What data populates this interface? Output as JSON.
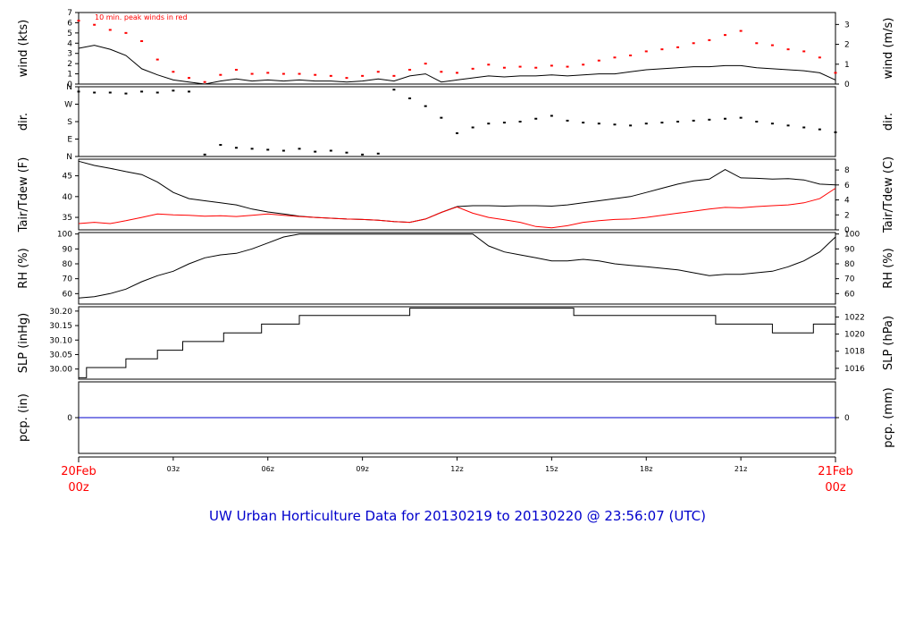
{
  "colors": {
    "main_series": "#000000",
    "peak_wind": "#ff0000",
    "dewpoint": "#ff0000",
    "precip": "#0000cc",
    "title": "#0000cc",
    "x_end_labels": "#ff0000"
  },
  "chart_data": {
    "title": "UW Urban Horticulture Data for 20130219  to  20130220 @ 23:56:07  (UTC)",
    "x_unit": "hours UTC",
    "x_range": [
      0,
      24
    ],
    "x_ticks": [
      {
        "x": 3,
        "label": "03z"
      },
      {
        "x": 6,
        "label": "06z"
      },
      {
        "x": 9,
        "label": "09z"
      },
      {
        "x": 12,
        "label": "12z"
      },
      {
        "x": 15,
        "label": "15z"
      },
      {
        "x": 18,
        "label": "18z"
      },
      {
        "x": 21,
        "label": "21z"
      }
    ],
    "x_start_label": [
      "20Feb",
      "00z"
    ],
    "x_end_label": [
      "21Feb",
      "00z"
    ],
    "panels": [
      {
        "id": "wind",
        "type": "line",
        "ylabel": "wind (kts)",
        "ylabel_right": "wind (m/s)",
        "ylim": [
          0,
          7
        ],
        "yticks_left": [
          0,
          1,
          2,
          3,
          4,
          5,
          6,
          7
        ],
        "right_scale": 0.514444,
        "yticks_right": [
          0,
          1,
          2,
          3
        ],
        "annotation": "10 min. peak winds in red",
        "series": [
          {
            "role": "main",
            "x": [
              0,
              0.5,
              1,
              1.5,
              2,
              2.5,
              3,
              3.5,
              4,
              4.5,
              5,
              5.5,
              6,
              6.5,
              7,
              7.5,
              8,
              8.5,
              9,
              9.5,
              10,
              10.5,
              11,
              11.5,
              12,
              12.5,
              13,
              13.5,
              14,
              14.5,
              15,
              15.5,
              16,
              16.5,
              17,
              17.5,
              18,
              18.5,
              19,
              19.5,
              20,
              20.5,
              21,
              21.5,
              22,
              22.5,
              23,
              23.5,
              24
            ],
            "y": [
              3.5,
              3.8,
              3.4,
              2.8,
              1.5,
              0.9,
              0.4,
              0.2,
              0,
              0.3,
              0.5,
              0.3,
              0.4,
              0.3,
              0.4,
              0.3,
              0.3,
              0.2,
              0.3,
              0.5,
              0.3,
              0.8,
              1,
              0.2,
              0.4,
              0.6,
              0.8,
              0.7,
              0.8,
              0.8,
              0.9,
              0.8,
              0.9,
              1,
              1,
              1.2,
              1.4,
              1.5,
              1.6,
              1.7,
              1.7,
              1.8,
              1.8,
              1.6,
              1.5,
              1.4,
              1.3,
              1.1,
              0.4
            ]
          },
          {
            "role": "peak",
            "x": [
              0,
              0.5,
              1,
              1.5,
              2,
              2.5,
              3,
              3.5,
              4,
              4.5,
              5,
              5.5,
              6,
              6.5,
              7,
              7.5,
              8,
              8.5,
              9,
              9.5,
              10,
              10.5,
              11,
              11.5,
              12,
              12.5,
              13,
              13.5,
              14,
              14.5,
              15,
              15.5,
              16,
              16.5,
              17,
              17.5,
              18,
              18.5,
              19,
              19.5,
              20,
              20.5,
              21,
              21.5,
              22,
              22.5,
              23,
              23.5,
              24
            ],
            "y": [
              6.2,
              5.8,
              5.3,
              5,
              4.2,
              2.4,
              1.2,
              0.6,
              0.2,
              0.9,
              1.4,
              1,
              1.1,
              1,
              1,
              0.9,
              0.8,
              0.6,
              0.8,
              1.2,
              0.8,
              1.4,
              2,
              1.2,
              1.1,
              1.5,
              1.9,
              1.6,
              1.7,
              1.6,
              1.8,
              1.7,
              1.9,
              2.3,
              2.6,
              2.8,
              3.2,
              3.4,
              3.6,
              4,
              4.3,
              4.8,
              5.2,
              4,
              3.8,
              3.4,
              3.2,
              2.6,
              1.1
            ]
          }
        ]
      },
      {
        "id": "dir",
        "type": "scatter",
        "ylabel": "dir.",
        "ylabel_right": "dir.",
        "ylim": [
          0,
          360
        ],
        "yticks_left": [
          {
            "v": 0,
            "label": "N"
          },
          {
            "v": 90,
            "label": "E"
          },
          {
            "v": 180,
            "label": "S"
          },
          {
            "v": 270,
            "label": "W"
          },
          {
            "v": 360,
            "label": "N"
          }
        ],
        "series": [
          {
            "role": "main",
            "x": [
              0,
              0.5,
              1,
              1.5,
              2,
              2.5,
              3,
              3.5,
              4,
              4.5,
              5,
              5.5,
              6,
              6.5,
              7,
              7.5,
              8,
              8.5,
              9,
              9.5,
              10,
              10.5,
              11,
              11.5,
              12,
              12.5,
              13,
              13.5,
              14,
              14.5,
              15,
              15.5,
              16,
              16.5,
              17,
              17.5,
              18,
              18.5,
              19,
              19.5,
              20,
              20.5,
              21,
              21.5,
              22,
              22.5,
              23,
              23.5,
              24
            ],
            "y": [
              335,
              330,
              330,
              325,
              335,
              330,
              340,
              335,
              10,
              60,
              45,
              40,
              35,
              30,
              40,
              25,
              30,
              20,
              10,
              15,
              345,
              300,
              260,
              200,
              120,
              150,
              170,
              175,
              180,
              195,
              210,
              185,
              175,
              170,
              165,
              160,
              170,
              175,
              180,
              185,
              190,
              195,
              200,
              180,
              170,
              160,
              150,
              140,
              125
            ]
          }
        ]
      },
      {
        "id": "temp",
        "type": "line",
        "ylabel": "Tair/Tdew (F)",
        "ylabel_right": "Tair/Tdew (C)",
        "ylim": [
          32,
          49
        ],
        "yticks_left": [
          35,
          40,
          45
        ],
        "yticks_right": [
          0,
          2,
          4,
          6,
          8
        ],
        "right_is_celsius": true,
        "series": [
          {
            "role": "main",
            "x": [
              0,
              0.5,
              1,
              1.5,
              2,
              2.5,
              3,
              3.5,
              4,
              4.5,
              5,
              5.5,
              6,
              6.5,
              7,
              7.5,
              8,
              8.5,
              9,
              9.5,
              10,
              10.5,
              11,
              11.5,
              12,
              12.5,
              13,
              13.5,
              14,
              14.5,
              15,
              15.5,
              16,
              16.5,
              17,
              17.5,
              18,
              18.5,
              19,
              19.5,
              20,
              20.5,
              21,
              21.5,
              22,
              22.5,
              23,
              23.5,
              24
            ],
            "y": [
              48.5,
              47.5,
              46.8,
              46,
              45.3,
              43.5,
              41,
              39.5,
              39,
              38.5,
              38,
              37,
              36.3,
              35.8,
              35.3,
              35,
              34.8,
              34.6,
              34.5,
              34.3,
              34,
              33.8,
              34.6,
              36.2,
              37.6,
              37.8,
              37.8,
              37.7,
              37.8,
              37.8,
              37.7,
              38,
              38.5,
              39,
              39.5,
              40,
              41,
              42,
              43,
              43.8,
              44.2,
              46.5,
              44.5,
              44.4,
              44.2,
              44.3,
              44,
              43,
              42.8
            ]
          },
          {
            "role": "dew",
            "x": [
              0,
              0.5,
              1,
              1.5,
              2,
              2.5,
              3,
              3.5,
              4,
              4.5,
              5,
              5.5,
              6,
              6.5,
              7,
              7.5,
              8,
              8.5,
              9,
              9.5,
              10,
              10.5,
              11,
              11.5,
              12,
              12.5,
              13,
              13.5,
              14,
              14.5,
              15,
              15.5,
              16,
              16.5,
              17,
              17.5,
              18,
              18.5,
              19,
              19.5,
              20,
              20.5,
              21,
              21.5,
              22,
              22.5,
              23,
              23.5,
              24
            ],
            "y": [
              33.5,
              33.8,
              33.5,
              34.2,
              35,
              35.8,
              35.6,
              35.5,
              35.3,
              35.4,
              35.2,
              35.5,
              35.8,
              35.5,
              35.2,
              35,
              34.8,
              34.6,
              34.5,
              34.3,
              34,
              33.8,
              34.6,
              36.2,
              37.5,
              36,
              35,
              34.4,
              33.8,
              32.8,
              32.5,
              33,
              33.8,
              34.2,
              34.5,
              34.6,
              35,
              35.5,
              36,
              36.5,
              37,
              37.4,
              37.3,
              37.6,
              37.8,
              38,
              38.5,
              39.5,
              42
            ]
          }
        ]
      },
      {
        "id": "rh",
        "type": "line",
        "ylabel": "RH (%)",
        "ylabel_right": "RH (%)",
        "ylim": [
          53,
          101
        ],
        "yticks_left": [
          60,
          70,
          80,
          90,
          100
        ],
        "yticks_right": [
          60,
          70,
          80,
          90,
          100
        ],
        "series": [
          {
            "role": "main",
            "x": [
              0,
              0.5,
              1,
              1.5,
              2,
              2.5,
              3,
              3.5,
              4,
              4.5,
              5,
              5.5,
              6,
              6.5,
              7,
              7.5,
              8,
              8.5,
              9,
              9.5,
              10,
              10.5,
              11,
              11.5,
              12,
              12.5,
              13,
              13.5,
              14,
              14.5,
              15,
              15.5,
              16,
              16.5,
              17,
              17.5,
              18,
              18.5,
              19,
              19.5,
              20,
              20.5,
              21,
              21.5,
              22,
              22.5,
              23,
              23.5,
              24
            ],
            "y": [
              57,
              58,
              60,
              63,
              68,
              72,
              75,
              80,
              84,
              86,
              87,
              90,
              94,
              98,
              100,
              100,
              100,
              100,
              100,
              100,
              100,
              100,
              100,
              100,
              100,
              100,
              92,
              88,
              86,
              84,
              82,
              82,
              83,
              82,
              80,
              79,
              78,
              77,
              76,
              74,
              72,
              73,
              73,
              74,
              75,
              78,
              82,
              88,
              98
            ]
          }
        ]
      },
      {
        "id": "slp",
        "type": "line",
        "ylabel": "SLP (inHg)",
        "ylabel_right": "SLP (hPa)",
        "ylim": [
          29.965,
          30.215
        ],
        "yticks_left": [
          {
            "v": 30.0,
            "label": "30.00"
          },
          {
            "v": 30.05,
            "label": "30.05"
          },
          {
            "v": 30.1,
            "label": "30.10"
          },
          {
            "v": 30.15,
            "label": "30.15"
          },
          {
            "v": 30.2,
            "label": "30.20"
          }
        ],
        "yticks_right": [
          1016,
          1018,
          1020,
          1022
        ],
        "right_is_hpa": true,
        "series": [
          {
            "role": "main",
            "step": true,
            "x": [
              0,
              0.25,
              1.5,
              2.5,
              3.3,
              4.6,
              5.8,
              7,
              10.5,
              15.7,
              20.2,
              22,
              23.3,
              24
            ],
            "y": [
              29.97,
              30.005,
              30.035,
              30.065,
              30.095,
              30.125,
              30.155,
              30.185,
              30.21,
              30.185,
              30.155,
              30.125,
              30.155,
              30.155
            ]
          }
        ]
      },
      {
        "id": "pcp",
        "type": "line",
        "ylabel": "pcp. (in)",
        "ylabel_right": "pcp. (mm)",
        "ylim": [
          -1,
          1
        ],
        "yticks_left": [
          0
        ],
        "yticks_right": [
          0
        ],
        "series": [
          {
            "role": "precip",
            "x": [
              0,
              24
            ],
            "y": [
              0,
              0
            ]
          }
        ]
      }
    ]
  }
}
